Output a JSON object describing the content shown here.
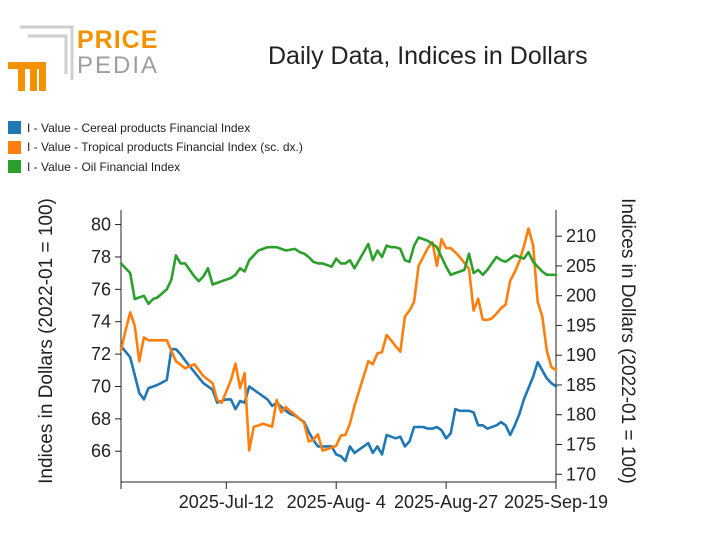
{
  "header": {
    "logo_top": "PRICE",
    "logo_bottom": "PEDIA",
    "title": "Daily Data, Indices in Dollars"
  },
  "colors": {
    "cereal": "#1f77b4",
    "tropical": "#ff7f0e",
    "oil": "#2ca02c",
    "logo_orange": "#f39200",
    "logo_gray": "#9e9e9e"
  },
  "legend": [
    {
      "label": "I - Value - Cereal products Financial Index",
      "color": "#1f77b4"
    },
    {
      "label": "I - Value - Tropical products Financial Index (sc. dx.)",
      "color": "#ff7f0e"
    },
    {
      "label": "I - Value - Oil Financial Index",
      "color": "#2ca02c"
    }
  ],
  "chart_data": {
    "type": "line",
    "title": "Daily Data, Indices in Dollars",
    "ylabel": "Indices in Dollars (2022-01 = 100)",
    "y2label": "Indices in Dollars (2022-01 = 100)",
    "legend_position": "top-left",
    "grid": false,
    "xlim": [
      0,
      95
    ],
    "ylim": [
      64.1,
      80.9
    ],
    "y2lim": [
      168.7,
      214.4
    ],
    "x_ticks": [
      {
        "x": 0,
        "label": ""
      },
      {
        "x": 23,
        "label": "2025-Jul-12"
      },
      {
        "x": 47,
        "label": "2025-Aug- 4"
      },
      {
        "x": 71,
        "label": "2025-Aug-27"
      },
      {
        "x": 95,
        "label": "2025-Sep-19"
      }
    ],
    "y_ticks": [
      66,
      68,
      70,
      72,
      74,
      76,
      78,
      80
    ],
    "y2_ticks": [
      170,
      175,
      180,
      185,
      190,
      195,
      200,
      205,
      210
    ],
    "series": [
      {
        "name": "I - Value - Cereal products Financial Index",
        "axis": "left",
        "x": [
          0,
          2,
          4,
          5,
          6,
          8,
          10,
          11,
          12,
          13,
          14,
          16,
          18,
          20,
          21,
          22,
          23,
          24,
          25,
          26,
          27,
          28,
          29,
          30,
          31,
          32,
          33,
          34,
          36,
          37,
          38,
          39,
          40,
          41,
          42,
          43,
          44,
          45,
          46,
          47,
          48,
          49,
          50,
          51,
          52,
          53,
          54,
          55,
          56,
          57,
          58,
          59,
          60,
          61,
          62,
          63,
          64,
          65,
          66,
          67,
          68,
          69,
          70,
          71,
          72,
          73,
          74,
          75,
          76,
          77,
          78,
          79,
          80,
          81,
          82,
          83,
          84,
          85,
          86,
          87,
          88,
          89,
          90,
          91,
          92,
          93,
          94,
          95
        ],
        "y": [
          72.5,
          71.8,
          69.6,
          69.2,
          69.9,
          70.1,
          70.4,
          72.3,
          72.3,
          72.0,
          71.6,
          70.9,
          70.2,
          69.8,
          69.0,
          69.1,
          69.2,
          69.2,
          68.6,
          69.1,
          69.0,
          70.0,
          69.8,
          69.6,
          69.4,
          69.2,
          68.8,
          69.0,
          68.5,
          68.3,
          68.2,
          68.0,
          67.8,
          67.2,
          66.7,
          66.3,
          66.3,
          66.3,
          66.3,
          65.8,
          65.7,
          65.4,
          66.3,
          65.9,
          66.1,
          66.3,
          66.5,
          65.9,
          66.3,
          65.8,
          67.0,
          66.9,
          66.8,
          66.9,
          66.3,
          66.6,
          67.5,
          67.5,
          67.5,
          67.4,
          67.4,
          67.5,
          67.3,
          66.8,
          67.1,
          68.6,
          68.5,
          68.5,
          68.5,
          68.4,
          67.6,
          67.6,
          67.4,
          67.5,
          67.6,
          67.8,
          67.6,
          67.0,
          67.6,
          68.3,
          69.2,
          69.9,
          70.6,
          71.5,
          71.0,
          70.5,
          70.2,
          70.0
        ]
      },
      {
        "name": "I - Value - Tropical products Financial Index (sc. dx.)",
        "axis": "right",
        "x": [
          0,
          1,
          2,
          3,
          4,
          5,
          6,
          8,
          10,
          12,
          14,
          16,
          18,
          20,
          21,
          22,
          24,
          25,
          26,
          27,
          28,
          29,
          30,
          31,
          33,
          34,
          35,
          36,
          37,
          38,
          40,
          41,
          42,
          43,
          44,
          45,
          46,
          47,
          48,
          49,
          50,
          51,
          52,
          53,
          54,
          55,
          56,
          57,
          58,
          59,
          60,
          61,
          62,
          63,
          64,
          65,
          66,
          67,
          68,
          69,
          70,
          71,
          72,
          73,
          74,
          75,
          76,
          77,
          78,
          79,
          80,
          81,
          82,
          83,
          84,
          85,
          86,
          87,
          88,
          89,
          90,
          91,
          92,
          93,
          94,
          95
        ],
        "y": [
          190.8,
          194.2,
          197.2,
          195.0,
          189.0,
          193.0,
          192.5,
          192.5,
          192.5,
          189.0,
          187.8,
          188.5,
          186.5,
          185.3,
          182.5,
          182.0,
          185.8,
          188.6,
          184.5,
          187.0,
          174.0,
          178.0,
          178.2,
          178.5,
          178.0,
          182.5,
          180.4,
          181.3,
          180.6,
          180.0,
          178.6,
          175.5,
          175.8,
          176.7,
          174.0,
          174.2,
          174.5,
          174.8,
          176.5,
          176.6,
          178.5,
          181.5,
          184.0,
          186.5,
          189.0,
          188.5,
          190.3,
          190.5,
          193.4,
          192.5,
          191.5,
          190.6,
          196.5,
          197.5,
          199.0,
          205.0,
          206.5,
          208.0,
          209.0,
          205.0,
          209.5,
          208.0,
          208.0,
          207.3,
          206.5,
          205.5,
          204.5,
          197.5,
          199.5,
          196.0,
          195.9,
          196.2,
          197.0,
          197.9,
          198.5,
          202.5,
          204.0,
          205.8,
          208.3,
          211.3,
          208.5,
          199.0,
          196.5,
          190.8,
          188.0,
          187.5
        ]
      },
      {
        "name": "I - Value - Oil Financial Index",
        "axis": "left",
        "x": [
          0,
          2,
          3,
          5,
          6,
          7,
          8,
          10,
          11,
          12,
          13,
          14,
          16,
          17,
          18,
          19,
          20,
          21,
          22,
          24,
          25,
          26,
          27,
          28,
          29,
          30,
          31,
          32,
          34,
          35,
          36,
          38,
          39,
          40,
          41,
          42,
          43,
          44,
          46,
          47,
          48,
          49,
          50,
          51,
          52,
          53,
          54,
          55,
          56,
          57,
          58,
          59,
          60,
          61,
          62,
          63,
          64,
          65,
          66,
          67,
          68,
          69,
          70,
          71,
          72,
          73,
          74,
          75,
          76,
          77,
          78,
          79,
          80,
          81,
          82,
          83,
          84,
          85,
          86,
          87,
          88,
          89,
          90,
          91,
          92,
          93,
          94,
          95
        ],
        "y": [
          77.6,
          77.0,
          75.4,
          75.6,
          75.1,
          75.4,
          75.5,
          76.0,
          76.6,
          78.1,
          77.6,
          77.6,
          76.8,
          76.5,
          76.8,
          77.3,
          76.3,
          76.4,
          76.5,
          76.7,
          76.9,
          77.3,
          77.1,
          77.8,
          78.1,
          78.4,
          78.5,
          78.6,
          78.6,
          78.5,
          78.4,
          78.5,
          78.3,
          78.2,
          78.0,
          77.7,
          77.6,
          77.6,
          77.4,
          77.9,
          77.6,
          77.6,
          77.8,
          77.3,
          77.8,
          78.3,
          78.8,
          77.8,
          78.4,
          78.0,
          78.7,
          78.6,
          78.6,
          78.5,
          77.8,
          77.7,
          78.7,
          79.2,
          79.1,
          79.0,
          78.8,
          78.6,
          78.0,
          77.4,
          76.9,
          77.0,
          77.1,
          77.2,
          78.2,
          77.0,
          77.2,
          76.9,
          77.2,
          77.6,
          78.0,
          77.8,
          77.7,
          77.9,
          78.1,
          78.0,
          77.9,
          78.3,
          77.7,
          77.4,
          77.1,
          76.9,
          76.9,
          76.9
        ]
      }
    ]
  }
}
